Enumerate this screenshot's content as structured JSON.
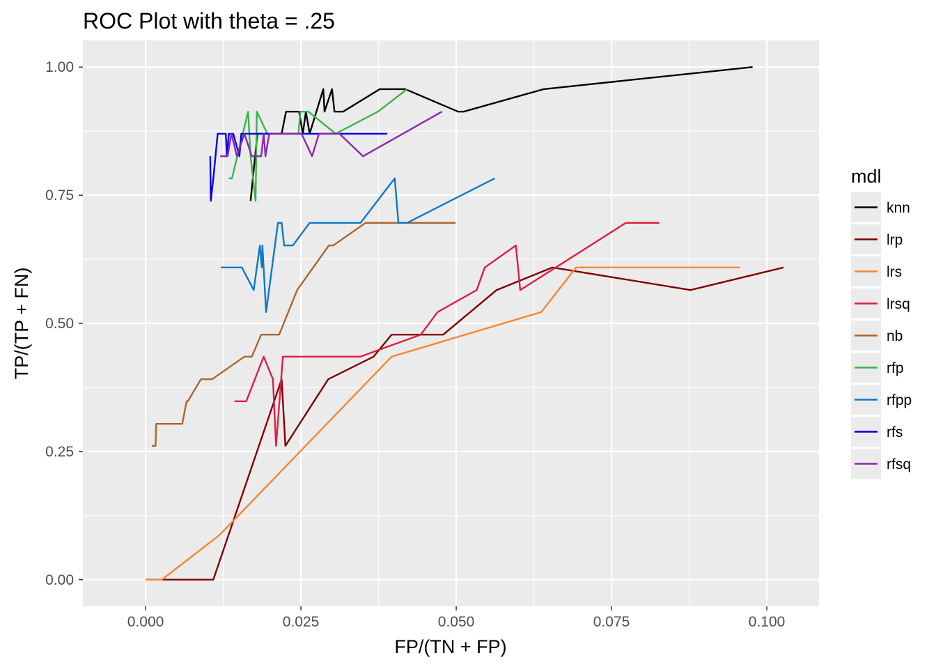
{
  "chart_data": {
    "type": "line",
    "title": "ROC Plot with theta = .25",
    "xlabel": "FP/(TN + FP)",
    "ylabel": "TP/(TP + FN)",
    "xlim": [
      -0.0101,
      0.1084
    ],
    "ylim": [
      -0.052,
      1.052
    ],
    "x_ticks": [
      0.0,
      0.025,
      0.05,
      0.075,
      0.1
    ],
    "x_tick_labels": [
      "0.000",
      "0.025",
      "0.050",
      "0.075",
      "0.100"
    ],
    "y_ticks": [
      0.0,
      0.25,
      0.5,
      0.75,
      1.0
    ],
    "y_tick_labels": [
      "0.00",
      "0.25",
      "0.50",
      "0.75",
      "1.00"
    ],
    "grid": true,
    "legend_title": "mdl",
    "legend_position": "right",
    "series": [
      {
        "name": "knn",
        "color": "#000000",
        "points": [
          [
            0.0169,
            0.739
          ],
          [
            0.018,
            0.87
          ],
          [
            0.0219,
            0.87
          ],
          [
            0.0226,
            0.913
          ],
          [
            0.0247,
            0.913
          ],
          [
            0.0253,
            0.87
          ],
          [
            0.0258,
            0.913
          ],
          [
            0.0264,
            0.87
          ],
          [
            0.0286,
            0.957
          ],
          [
            0.0288,
            0.913
          ],
          [
            0.03,
            0.957
          ],
          [
            0.0304,
            0.913
          ],
          [
            0.0318,
            0.913
          ],
          [
            0.0377,
            0.957
          ],
          [
            0.0418,
            0.957
          ],
          [
            0.0503,
            0.913
          ],
          [
            0.0512,
            0.913
          ],
          [
            0.0641,
            0.957
          ],
          [
            0.0977,
            1.0
          ]
        ]
      },
      {
        "name": "lrp",
        "color": "#7f0000",
        "points": [
          [
            0.0,
            0.0
          ],
          [
            0.0109,
            0.0
          ],
          [
            0.0219,
            0.391
          ],
          [
            0.0225,
            0.261
          ],
          [
            0.0294,
            0.391
          ],
          [
            0.0367,
            0.435
          ],
          [
            0.0396,
            0.478
          ],
          [
            0.0479,
            0.478
          ],
          [
            0.0565,
            0.565
          ],
          [
            0.0655,
            0.609
          ],
          [
            0.0877,
            0.565
          ],
          [
            0.1027,
            0.609
          ]
        ]
      },
      {
        "name": "lrs",
        "color": "#f48733",
        "points": [
          [
            0.0,
            0.0
          ],
          [
            0.0026,
            0.0
          ],
          [
            0.0119,
            0.087
          ],
          [
            0.0396,
            0.435
          ],
          [
            0.0637,
            0.522
          ],
          [
            0.0693,
            0.609
          ],
          [
            0.0957,
            0.609
          ]
        ]
      },
      {
        "name": "lrsq",
        "color": "#dc1f45",
        "points": [
          [
            0.0143,
            0.348
          ],
          [
            0.0162,
            0.348
          ],
          [
            0.019,
            0.435
          ],
          [
            0.0205,
            0.391
          ],
          [
            0.021,
            0.261
          ],
          [
            0.0221,
            0.435
          ],
          [
            0.0346,
            0.435
          ],
          [
            0.0386,
            0.453
          ],
          [
            0.0443,
            0.478
          ],
          [
            0.047,
            0.522
          ],
          [
            0.0533,
            0.565
          ],
          [
            0.0546,
            0.609
          ],
          [
            0.0596,
            0.652
          ],
          [
            0.0603,
            0.565
          ],
          [
            0.0773,
            0.696
          ],
          [
            0.0827,
            0.696
          ]
        ]
      },
      {
        "name": "nb",
        "color": "#a9662c",
        "points": [
          [
            0.001,
            0.261
          ],
          [
            0.0016,
            0.261
          ],
          [
            0.0017,
            0.304
          ],
          [
            0.0059,
            0.304
          ],
          [
            0.0066,
            0.348
          ],
          [
            0.0068,
            0.348
          ],
          [
            0.0089,
            0.391
          ],
          [
            0.0107,
            0.391
          ],
          [
            0.0159,
            0.435
          ],
          [
            0.0171,
            0.435
          ],
          [
            0.0186,
            0.478
          ],
          [
            0.0215,
            0.478
          ],
          [
            0.0244,
            0.565
          ],
          [
            0.0295,
            0.652
          ],
          [
            0.0302,
            0.652
          ],
          [
            0.0354,
            0.696
          ],
          [
            0.0499,
            0.696
          ]
        ]
      },
      {
        "name": "rfp",
        "color": "#3db34a",
        "points": [
          [
            0.0134,
            0.783
          ],
          [
            0.0139,
            0.783
          ],
          [
            0.0165,
            0.913
          ],
          [
            0.0169,
            0.826
          ],
          [
            0.0177,
            0.739
          ],
          [
            0.0179,
            0.913
          ],
          [
            0.0196,
            0.87
          ],
          [
            0.0246,
            0.87
          ],
          [
            0.0249,
            0.913
          ],
          [
            0.0262,
            0.913
          ],
          [
            0.0306,
            0.87
          ],
          [
            0.0374,
            0.913
          ],
          [
            0.0421,
            0.957
          ]
        ]
      },
      {
        "name": "rfpp",
        "color": "#0a79c9",
        "points": [
          [
            0.0121,
            0.609
          ],
          [
            0.0155,
            0.609
          ],
          [
            0.0174,
            0.565
          ],
          [
            0.0184,
            0.652
          ],
          [
            0.0187,
            0.609
          ],
          [
            0.0188,
            0.652
          ],
          [
            0.0194,
            0.522
          ],
          [
            0.0213,
            0.696
          ],
          [
            0.0219,
            0.696
          ],
          [
            0.0223,
            0.652
          ],
          [
            0.0237,
            0.652
          ],
          [
            0.0264,
            0.696
          ],
          [
            0.0346,
            0.696
          ],
          [
            0.0401,
            0.783
          ],
          [
            0.0407,
            0.696
          ],
          [
            0.0421,
            0.696
          ],
          [
            0.0562,
            0.783
          ]
        ]
      },
      {
        "name": "rfs",
        "color": "#0000e6",
        "points": [
          [
            0.0104,
            0.826
          ],
          [
            0.0105,
            0.739
          ],
          [
            0.0109,
            0.783
          ],
          [
            0.0116,
            0.87
          ],
          [
            0.0129,
            0.87
          ],
          [
            0.0131,
            0.826
          ],
          [
            0.0134,
            0.87
          ],
          [
            0.0141,
            0.87
          ],
          [
            0.0151,
            0.826
          ],
          [
            0.0154,
            0.87
          ],
          [
            0.0389,
            0.87
          ]
        ]
      },
      {
        "name": "rfsq",
        "color": "#8c27b0",
        "points": [
          [
            0.012,
            0.826
          ],
          [
            0.0132,
            0.826
          ],
          [
            0.0138,
            0.87
          ],
          [
            0.0147,
            0.826
          ],
          [
            0.0159,
            0.87
          ],
          [
            0.0171,
            0.826
          ],
          [
            0.0186,
            0.826
          ],
          [
            0.019,
            0.87
          ],
          [
            0.0193,
            0.826
          ],
          [
            0.0199,
            0.87
          ],
          [
            0.0229,
            0.87
          ],
          [
            0.0251,
            0.87
          ],
          [
            0.0268,
            0.826
          ],
          [
            0.0279,
            0.87
          ],
          [
            0.0312,
            0.87
          ],
          [
            0.035,
            0.826
          ],
          [
            0.0477,
            0.913
          ]
        ]
      }
    ]
  }
}
